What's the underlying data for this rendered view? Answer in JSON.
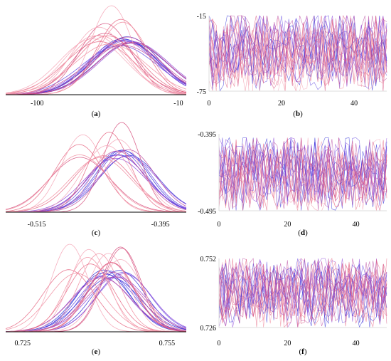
{
  "chart_data": [
    {
      "panel": "a",
      "caption": "(a)",
      "type": "line",
      "kind": "density",
      "xlim": [
        -120,
        -5
      ],
      "xticks": [
        -100,
        -10
      ],
      "components": {
        "count": 26,
        "mean_range": [
          -65,
          -38
        ],
        "sd_range": [
          13,
          24
        ]
      }
    },
    {
      "panel": "b",
      "caption": "(b)",
      "type": "line",
      "kind": "trace",
      "xlim": [
        0,
        49
      ],
      "ylim": [
        -75,
        -15
      ],
      "xticks": [
        0,
        20,
        40
      ],
      "yticks": [
        -15,
        -75
      ],
      "series_count": 24,
      "value_range": [
        -75,
        -15
      ]
    },
    {
      "panel": "c",
      "caption": "(c)",
      "type": "line",
      "kind": "density",
      "xlim": [
        -0.545,
        -0.37
      ],
      "xticks": [
        -0.515,
        -0.395
      ],
      "components": {
        "count": 20,
        "mean_range": [
          -0.475,
          -0.425
        ],
        "sd_range": [
          0.018,
          0.03
        ]
      }
    },
    {
      "panel": "d",
      "caption": "(d)",
      "type": "line",
      "kind": "trace",
      "xlim": [
        0,
        49
      ],
      "ylim": [
        -0.495,
        -0.395
      ],
      "xticks": [
        0,
        20,
        40
      ],
      "yticks": [
        -0.395,
        -0.495
      ],
      "series_count": 22,
      "value_range": [
        -0.495,
        -0.4
      ]
    },
    {
      "panel": "e",
      "caption": "(e)",
      "type": "line",
      "kind": "density",
      "xlim": [
        0.7215,
        0.759
      ],
      "xticks": [
        0.725,
        0.755
      ],
      "components": {
        "count": 26,
        "mean_range": [
          0.7345,
          0.7465
        ],
        "sd_range": [
          0.0038,
          0.0062
        ]
      }
    },
    {
      "panel": "f",
      "caption": "(f)",
      "type": "line",
      "kind": "trace",
      "xlim": [
        0,
        49
      ],
      "ylim": [
        0.726,
        0.752
      ],
      "xticks": [
        0,
        20,
        40
      ],
      "yticks": [
        0.752,
        0.726
      ],
      "series_count": 22,
      "value_range": [
        0.726,
        0.752
      ]
    }
  ],
  "style": {
    "palette": [
      "#2b2bd6",
      "#5a3fe0",
      "#8b44d8",
      "#b8459e",
      "#d64f7d",
      "#e5637f",
      "#f08a9c",
      "#f4a3b5"
    ],
    "axis_color": "#000000",
    "gridline_color": "#eeeeee"
  }
}
